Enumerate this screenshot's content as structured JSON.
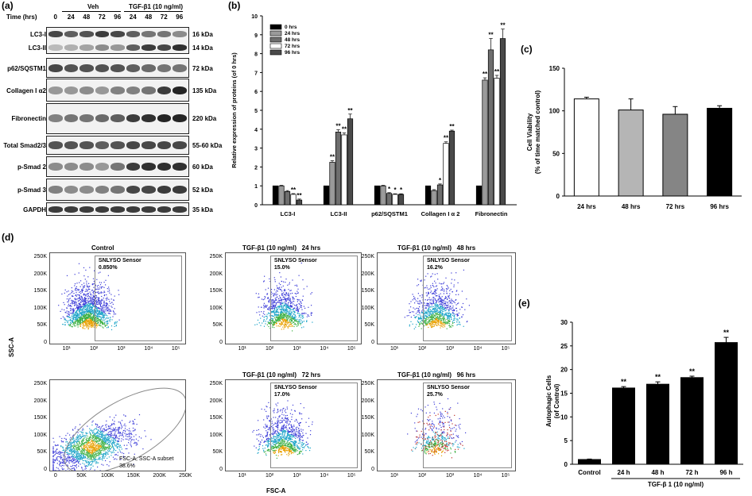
{
  "panel_a": {
    "label": "(a)",
    "time_label": "Time (hrs)",
    "group_veh": "Veh",
    "group_tgf": "TGF-β1 (10 ng/ml)",
    "times": [
      "0",
      "24",
      "48",
      "72",
      "96",
      "24",
      "48",
      "72",
      "96"
    ],
    "rows": [
      {
        "name": "LC3-I",
        "kda": "16 kDa"
      },
      {
        "name": "LC3-II",
        "kda": "14 kDa"
      },
      {
        "name": "p62/SQSTM1",
        "kda": "72 kDa"
      },
      {
        "name": "Collagen I α2",
        "kda": "135 kDa"
      },
      {
        "name": "Fibronectin",
        "kda": "220 kDa"
      },
      {
        "name": "Total Smad2/3",
        "kda": "55-60 kDa"
      },
      {
        "name": "p-Smad 2",
        "kda": "60 kDa"
      },
      {
        "name": "p-Smad 3",
        "kda": "52 kDa"
      },
      {
        "name": "GAPDH",
        "kda": "35 kDa"
      }
    ]
  },
  "panel_b": {
    "label": "(b)"
  },
  "panel_c": {
    "label": "(c)"
  },
  "panel_d": {
    "label": "(d)",
    "y_axis": "SSC-A",
    "x_axis": "FSC-A",
    "plots": [
      {
        "title": "Control",
        "gate": "SNLYSO Sensor",
        "pct": "0.850%"
      },
      {
        "title": "TGF-β1 (10 ng/ml)   24 hrs",
        "gate": "SNLYSO Sensor",
        "pct": "15.0%"
      },
      {
        "title": "TGF-β1 (10 ng/ml)   48 hrs",
        "gate": "SNLYSO Sensor",
        "pct": "16.2%"
      },
      {
        "title": "",
        "gate": "FSC-A, SSC-A subset",
        "pct": "38.6%"
      },
      {
        "title": "TGF-β1 (10 ng/ml)   72 hrs",
        "gate": "SNLYSO Sensor",
        "pct": "17.0%"
      },
      {
        "title": "TGF-β1 (10 ng/ml)   96 hrs",
        "gate": "SNLYSO Sensor",
        "pct": "25.7%"
      }
    ],
    "y_ticks": [
      "250K",
      "200K",
      "150K",
      "100K",
      "50K",
      "0"
    ],
    "log_ticks": [
      "10¹",
      "10²",
      "10³",
      "10⁴",
      "10⁵"
    ],
    "lin_ticks": [
      "0",
      "50K",
      "100K",
      "150K",
      "200K",
      "250K"
    ]
  },
  "panel_e": {
    "label": "(e)"
  },
  "chart_data": [
    {
      "id": "b",
      "type": "bar",
      "ylabel": "Relative expression of proteins (of 0 hrs)",
      "ylim": [
        0,
        10
      ],
      "yticks": [
        0,
        1,
        2,
        3,
        4,
        5,
        6,
        7,
        8,
        9,
        10
      ],
      "categories": [
        "LC3-I",
        "LC3-II",
        "p62/SQSTM1",
        "Collagen I α 2",
        "Fibronectin"
      ],
      "series": [
        {
          "name": "0 hrs",
          "color": "#000000",
          "values": [
            1,
            1,
            1,
            1,
            1
          ],
          "err": [
            0,
            0,
            0,
            0,
            0
          ],
          "sig": [
            "",
            "",
            "",
            "",
            ""
          ]
        },
        {
          "name": "24 hrs",
          "color": "#9a9a9a",
          "values": [
            1.0,
            2.25,
            1.0,
            0.75,
            6.6
          ],
          "err": [
            0.03,
            0.08,
            0.03,
            0.05,
            0.12
          ],
          "sig": [
            "",
            "**",
            "",
            "",
            "**"
          ]
        },
        {
          "name": "48 hrs",
          "color": "#6e6e6e",
          "values": [
            0.7,
            3.85,
            0.6,
            1.05,
            8.2
          ],
          "err": [
            0.05,
            0.12,
            0.04,
            0.05,
            0.6
          ],
          "sig": [
            "",
            "**",
            "*",
            "*",
            "**"
          ]
        },
        {
          "name": "72 hrs",
          "color": "#ffffff",
          "values": [
            0.55,
            3.7,
            0.55,
            3.25,
            6.7
          ],
          "err": [
            0.04,
            0.1,
            0.03,
            0.08,
            0.15
          ],
          "sig": [
            "**",
            "**",
            "*",
            "**",
            "**"
          ]
        },
        {
          "name": "96 hrs",
          "color": "#4a4a4a",
          "values": [
            0.25,
            4.55,
            0.55,
            3.9,
            8.8
          ],
          "err": [
            0.05,
            0.25,
            0.03,
            0.05,
            0.5
          ],
          "sig": [
            "**",
            "**",
            "*",
            "**",
            "**"
          ]
        }
      ],
      "legend": "top-left"
    },
    {
      "id": "c",
      "type": "bar",
      "ylabel": "Cell Viability",
      "ylabel2": "(% of time matched control)",
      "ylim": [
        0,
        150
      ],
      "yticks": [
        0,
        50,
        100,
        150
      ],
      "categories": [
        "24 hrs",
        "48 hrs",
        "72 hrs",
        "96 hrs"
      ],
      "values": [
        114,
        101,
        96,
        103
      ],
      "err": [
        2,
        13,
        9,
        3
      ],
      "colors": [
        "#ffffff",
        "#b5b5b5",
        "#858585",
        "#000000"
      ]
    },
    {
      "id": "e",
      "type": "bar",
      "ylabel": "Autophagic Cells",
      "ylabel2": "(of Control)",
      "ylim": [
        0,
        30
      ],
      "yticks": [
        0,
        5,
        10,
        15,
        20,
        25,
        30
      ],
      "categories": [
        "Control",
        "24 h",
        "48 h",
        "72 h",
        "96 h"
      ],
      "values": [
        1,
        16.1,
        16.9,
        18.3,
        25.7
      ],
      "err": [
        0.1,
        0.3,
        0.5,
        0.3,
        1.1
      ],
      "sig": [
        "",
        "**",
        "**",
        "**",
        "**"
      ],
      "xgroup_label": "TGF-β 1 (10 ng/ml)"
    }
  ]
}
